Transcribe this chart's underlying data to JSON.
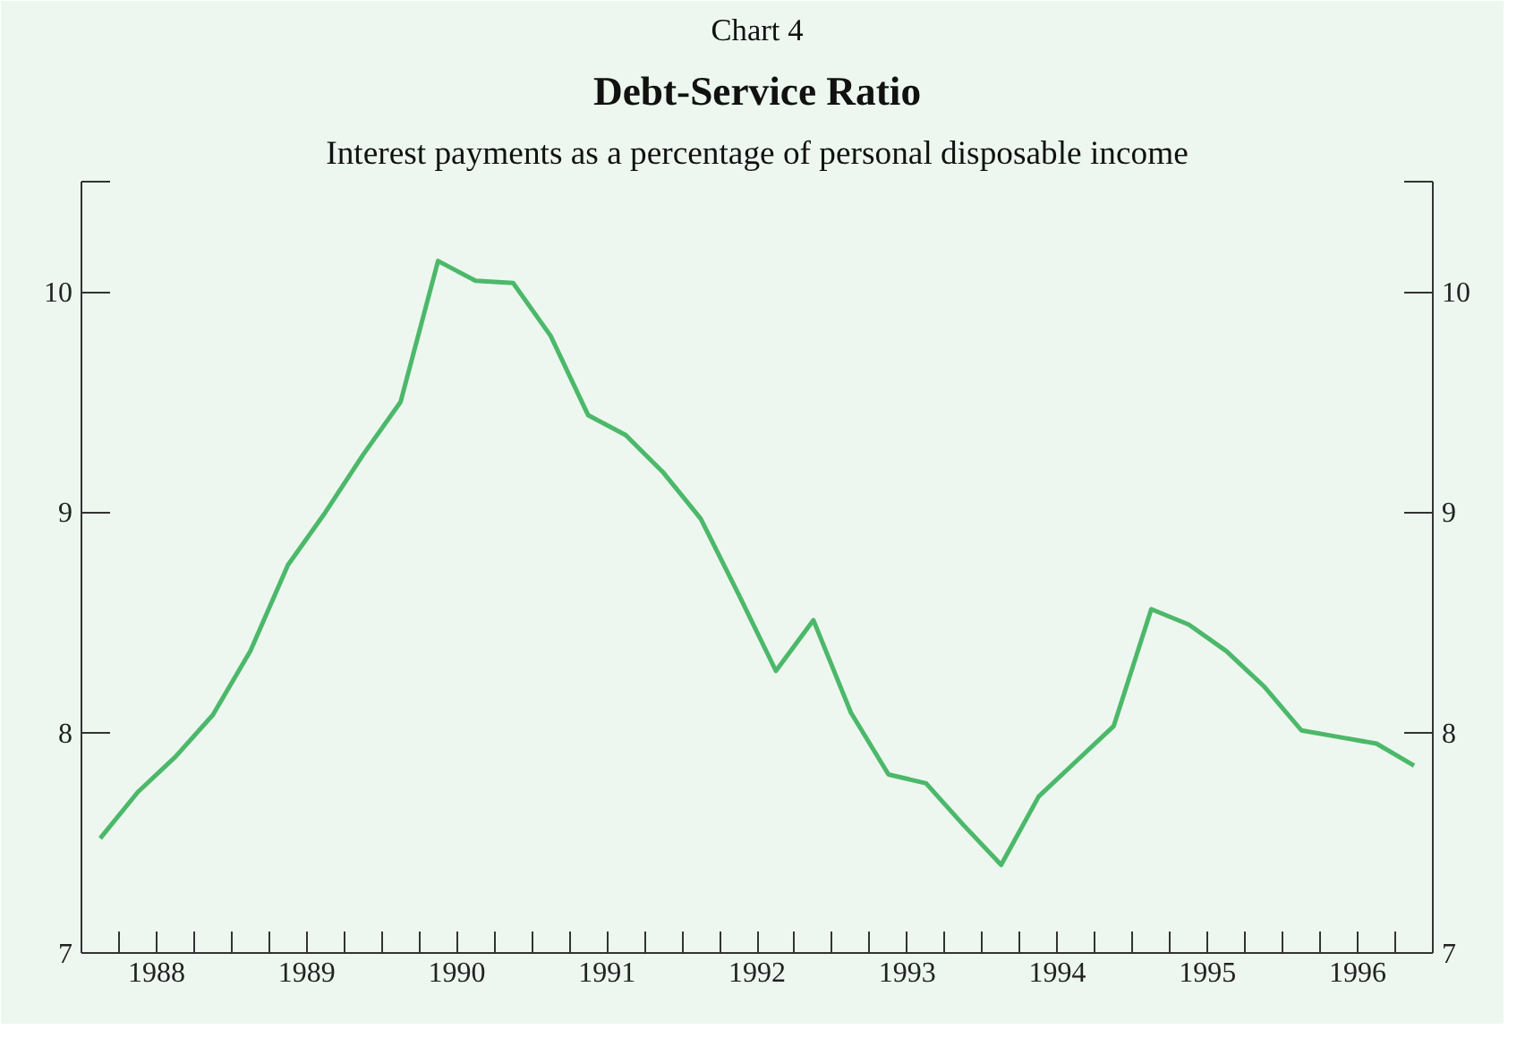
{
  "chart_data": {
    "type": "line",
    "title": "Debt-Service Ratio",
    "subtitle": "Interest payments as a percentage of personal disposable income",
    "annotations": [
      "Chart 4"
    ],
    "x": [
      1988.125,
      1988.375,
      1988.625,
      1988.875,
      1989.125,
      1989.375,
      1989.625,
      1989.875,
      1990.125,
      1990.375,
      1990.625,
      1990.875,
      1991.125,
      1991.375,
      1991.625,
      1991.875,
      1992.125,
      1992.375,
      1992.625,
      1992.875,
      1993.125,
      1993.375,
      1993.625,
      1993.875,
      1994.125,
      1994.375,
      1994.625,
      1994.875,
      1995.125,
      1995.375,
      1995.625,
      1995.875,
      1996.125,
      1996.375,
      1996.625,
      1996.875
    ],
    "series": [
      {
        "color": "#4cb86a",
        "values": [
          7.52,
          7.73,
          7.89,
          8.08,
          8.37,
          8.76,
          9.0,
          9.26,
          9.5,
          10.14,
          10.05,
          10.04,
          9.8,
          9.44,
          9.35,
          9.18,
          8.97,
          8.63,
          8.28,
          8.51,
          8.09,
          7.81,
          7.77,
          7.58,
          7.4,
          7.71,
          7.87,
          8.03,
          8.56,
          8.49,
          8.37,
          8.21,
          8.01,
          7.98,
          7.95,
          7.85
        ]
      }
    ],
    "xlim": [
      1988,
      1997
    ],
    "xticks": [
      {
        "value": 1988,
        "label": null
      },
      {
        "value": 1988.25,
        "label": null
      },
      {
        "value": 1988.5,
        "label": "1988"
      },
      {
        "value": 1988.75,
        "label": null
      },
      {
        "value": 1989,
        "label": null
      },
      {
        "value": 1989.25,
        "label": null
      },
      {
        "value": 1989.5,
        "label": "1989"
      },
      {
        "value": 1989.75,
        "label": null
      },
      {
        "value": 1990,
        "label": null
      },
      {
        "value": 1990.25,
        "label": null
      },
      {
        "value": 1990.5,
        "label": "1990"
      },
      {
        "value": 1990.75,
        "label": null
      },
      {
        "value": 1991,
        "label": null
      },
      {
        "value": 1991.25,
        "label": null
      },
      {
        "value": 1991.5,
        "label": "1991"
      },
      {
        "value": 1991.75,
        "label": null
      },
      {
        "value": 1992,
        "label": null
      },
      {
        "value": 1992.25,
        "label": null
      },
      {
        "value": 1992.5,
        "label": "1992"
      },
      {
        "value": 1992.75,
        "label": null
      },
      {
        "value": 1993,
        "label": null
      },
      {
        "value": 1993.25,
        "label": null
      },
      {
        "value": 1993.5,
        "label": "1993"
      },
      {
        "value": 1993.75,
        "label": null
      },
      {
        "value": 1994,
        "label": null
      },
      {
        "value": 1994.25,
        "label": null
      },
      {
        "value": 1994.5,
        "label": "1994"
      },
      {
        "value": 1994.75,
        "label": null
      },
      {
        "value": 1995,
        "label": null
      },
      {
        "value": 1995.25,
        "label": null
      },
      {
        "value": 1995.5,
        "label": "1995"
      },
      {
        "value": 1995.75,
        "label": null
      },
      {
        "value": 1996,
        "label": null
      },
      {
        "value": 1996.25,
        "label": null
      },
      {
        "value": 1996.5,
        "label": "1996"
      },
      {
        "value": 1996.75,
        "label": null
      },
      {
        "value": 1997,
        "label": null
      }
    ],
    "ylim": [
      7,
      10.5
    ],
    "yticks": [
      7,
      8,
      9,
      10,
      {
        "value": 10.5,
        "label": null
      }
    ],
    "y2lim": [
      7,
      10.5
    ],
    "y2ticks": [
      7,
      8,
      9,
      10,
      {
        "value": 10.5,
        "label": null
      }
    ],
    "grid": false,
    "marker": "none",
    "line_style": "solid"
  }
}
